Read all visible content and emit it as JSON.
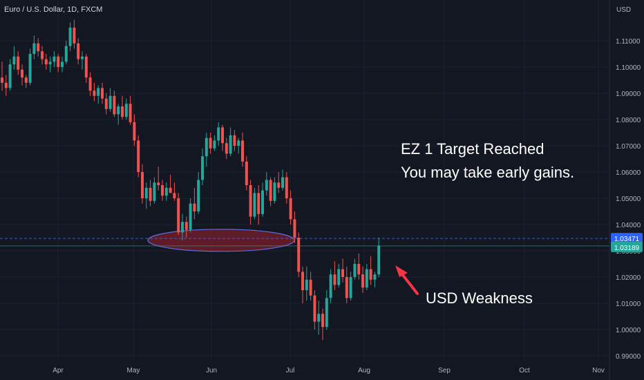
{
  "header": {
    "symbol": "Euro / U.S. Dollar, 1D, FXCM"
  },
  "price_axis": {
    "currency": "USD",
    "ticks": [
      "1.11000",
      "1.10000",
      "1.09000",
      "1.08000",
      "1.07000",
      "1.06000",
      "1.05000",
      "1.04000",
      "1.03000",
      "1.02000",
      "1.01000",
      "1.00000",
      "0.99000"
    ],
    "tick_values": [
      1.11,
      1.1,
      1.09,
      1.08,
      1.07,
      1.06,
      1.05,
      1.04,
      1.03,
      1.02,
      1.01,
      1.0,
      0.99
    ]
  },
  "time_axis": {
    "labels": [
      "Apr",
      "May",
      "Jun",
      "Jul",
      "Aug",
      "Sep",
      "Oct",
      "Nov"
    ]
  },
  "price_labels": {
    "level": {
      "text": "1.03471",
      "value": 1.03471,
      "color": "#2962ff"
    },
    "last": {
      "text": "1.03189",
      "value": 1.03189,
      "color": "#26a69a"
    }
  },
  "annotations": {
    "target_line1": "EZ 1 Target Reached",
    "target_line2": "You may take early gains.",
    "usd_weakness": "USD Weakness"
  },
  "colors": {
    "up": "#26a69a",
    "down": "#ef5350",
    "background": "#131722",
    "arrow": "#f23645",
    "ellipse_stroke": "#5b6de0",
    "ellipse_fill": "#7a1f2b"
  },
  "chart_data": {
    "type": "candlestick",
    "title": "Euro / U.S. Dollar, 1D, FXCM",
    "ylabel": "USD",
    "ylim": [
      0.988,
      1.1225
    ],
    "horizontal_level": 1.03471,
    "last_price": 1.03189,
    "support_zone": [
      1.03,
      1.038
    ],
    "series": [
      {
        "name": "EURUSD",
        "ohlc": [
          [
            1.096,
            1.102,
            1.091,
            1.094
          ],
          [
            1.094,
            1.097,
            1.089,
            1.092
          ],
          [
            1.092,
            1.103,
            1.091,
            1.101
          ],
          [
            1.101,
            1.108,
            1.099,
            1.104
          ],
          [
            1.104,
            1.106,
            1.097,
            1.099
          ],
          [
            1.099,
            1.101,
            1.093,
            1.096
          ],
          [
            1.096,
            1.097,
            1.092,
            1.094
          ],
          [
            1.094,
            1.107,
            1.093,
            1.105
          ],
          [
            1.105,
            1.112,
            1.103,
            1.109
          ],
          [
            1.109,
            1.111,
            1.104,
            1.106
          ],
          [
            1.106,
            1.108,
            1.101,
            1.103
          ],
          [
            1.103,
            1.105,
            1.099,
            1.101
          ],
          [
            1.101,
            1.104,
            1.098,
            1.102
          ],
          [
            1.102,
            1.106,
            1.1,
            1.104
          ],
          [
            1.104,
            1.105,
            1.098,
            1.1
          ],
          [
            1.1,
            1.104,
            1.098,
            1.102
          ],
          [
            1.102,
            1.11,
            1.101,
            1.108
          ],
          [
            1.108,
            1.117,
            1.106,
            1.115
          ],
          [
            1.115,
            1.118,
            1.107,
            1.109
          ],
          [
            1.109,
            1.111,
            1.101,
            1.103
          ],
          [
            1.103,
            1.106,
            1.099,
            1.104
          ],
          [
            1.104,
            1.105,
            1.094,
            1.096
          ],
          [
            1.096,
            1.098,
            1.089,
            1.091
          ],
          [
            1.091,
            1.094,
            1.087,
            1.089
          ],
          [
            1.089,
            1.093,
            1.086,
            1.092
          ],
          [
            1.092,
            1.094,
            1.086,
            1.088
          ],
          [
            1.088,
            1.09,
            1.082,
            1.084
          ],
          [
            1.084,
            1.092,
            1.083,
            1.089
          ],
          [
            1.089,
            1.091,
            1.081,
            1.082
          ],
          [
            1.082,
            1.086,
            1.078,
            1.085
          ],
          [
            1.085,
            1.089,
            1.08,
            1.081
          ],
          [
            1.081,
            1.088,
            1.08,
            1.086
          ],
          [
            1.086,
            1.089,
            1.078,
            1.079
          ],
          [
            1.079,
            1.082,
            1.07,
            1.072
          ],
          [
            1.072,
            1.074,
            1.058,
            1.06
          ],
          [
            1.06,
            1.063,
            1.048,
            1.05
          ],
          [
            1.05,
            1.056,
            1.046,
            1.054
          ],
          [
            1.054,
            1.057,
            1.047,
            1.049
          ],
          [
            1.049,
            1.058,
            1.048,
            1.056
          ],
          [
            1.056,
            1.062,
            1.053,
            1.055
          ],
          [
            1.055,
            1.057,
            1.049,
            1.051
          ],
          [
            1.051,
            1.056,
            1.049,
            1.054
          ],
          [
            1.054,
            1.059,
            1.052,
            1.052
          ],
          [
            1.052,
            1.056,
            1.049,
            1.05
          ],
          [
            1.05,
            1.052,
            1.036,
            1.037
          ],
          [
            1.037,
            1.044,
            1.034,
            1.041
          ],
          [
            1.041,
            1.043,
            1.035,
            1.038
          ],
          [
            1.038,
            1.05,
            1.037,
            1.048
          ],
          [
            1.048,
            1.054,
            1.042,
            1.045
          ],
          [
            1.045,
            1.06,
            1.044,
            1.057
          ],
          [
            1.057,
            1.069,
            1.055,
            1.066
          ],
          [
            1.066,
            1.075,
            1.062,
            1.073
          ],
          [
            1.073,
            1.075,
            1.067,
            1.069
          ],
          [
            1.069,
            1.074,
            1.068,
            1.072
          ],
          [
            1.072,
            1.079,
            1.07,
            1.077
          ],
          [
            1.077,
            1.078,
            1.068,
            1.071
          ],
          [
            1.071,
            1.073,
            1.065,
            1.067
          ],
          [
            1.067,
            1.077,
            1.066,
            1.074
          ],
          [
            1.074,
            1.076,
            1.068,
            1.07
          ],
          [
            1.07,
            1.073,
            1.067,
            1.072
          ],
          [
            1.072,
            1.075,
            1.062,
            1.064
          ],
          [
            1.064,
            1.066,
            1.053,
            1.055
          ],
          [
            1.055,
            1.057,
            1.04,
            1.043
          ],
          [
            1.043,
            1.054,
            1.042,
            1.052
          ],
          [
            1.052,
            1.055,
            1.04,
            1.044
          ],
          [
            1.044,
            1.056,
            1.043,
            1.053
          ],
          [
            1.053,
            1.06,
            1.051,
            1.057
          ],
          [
            1.057,
            1.058,
            1.047,
            1.049
          ],
          [
            1.049,
            1.058,
            1.048,
            1.056
          ],
          [
            1.056,
            1.06,
            1.052,
            1.054
          ],
          [
            1.054,
            1.061,
            1.053,
            1.058
          ],
          [
            1.058,
            1.06,
            1.048,
            1.05
          ],
          [
            1.05,
            1.053,
            1.04,
            1.042
          ],
          [
            1.042,
            1.045,
            1.033,
            1.035
          ],
          [
            1.035,
            1.037,
            1.02,
            1.022
          ],
          [
            1.022,
            1.024,
            1.01,
            1.015
          ],
          [
            1.015,
            1.024,
            1.011,
            1.019
          ],
          [
            1.019,
            1.022,
            1.011,
            1.013
          ],
          [
            1.013,
            1.015,
            1.0,
            1.003
          ],
          [
            1.003,
            1.011,
            0.998,
            1.006
          ],
          [
            1.006,
            1.008,
            0.996,
            1.001
          ],
          [
            1.001,
            1.015,
            1.0,
            1.012
          ],
          [
            1.012,
            1.023,
            1.01,
            1.021
          ],
          [
            1.021,
            1.026,
            1.015,
            1.017
          ],
          [
            1.017,
            1.025,
            1.016,
            1.023
          ],
          [
            1.023,
            1.027,
            1.018,
            1.02
          ],
          [
            1.02,
            1.024,
            1.01,
            1.012
          ],
          [
            1.012,
            1.022,
            1.011,
            1.02
          ],
          [
            1.02,
            1.027,
            1.019,
            1.025
          ],
          [
            1.025,
            1.029,
            1.019,
            1.021
          ],
          [
            1.021,
            1.024,
            1.014,
            1.016
          ],
          [
            1.016,
            1.025,
            1.015,
            1.023
          ],
          [
            1.023,
            1.028,
            1.017,
            1.019
          ],
          [
            1.019,
            1.022,
            1.016,
            1.021
          ],
          [
            1.021,
            1.035,
            1.02,
            1.032
          ]
        ]
      }
    ]
  }
}
